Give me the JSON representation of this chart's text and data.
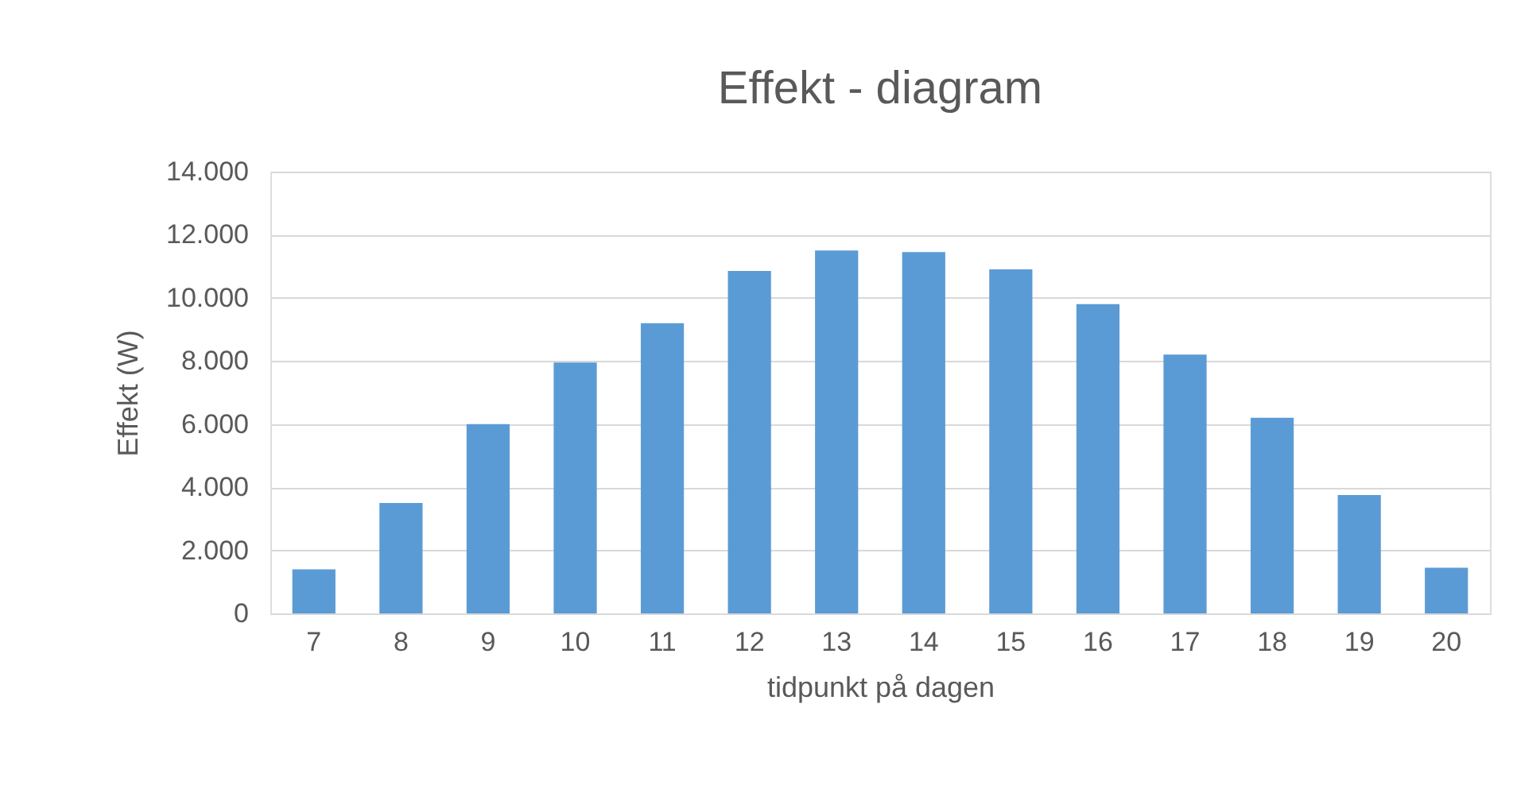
{
  "chart_data": {
    "type": "bar",
    "title": "Effekt - diagram",
    "xlabel": "tidpunkt på dagen",
    "ylabel": "Effekt (W)",
    "categories": [
      "7",
      "8",
      "9",
      "10",
      "11",
      "12",
      "13",
      "14",
      "15",
      "16",
      "17",
      "18",
      "19",
      "20"
    ],
    "values": [
      1400,
      3500,
      6000,
      7950,
      9200,
      10850,
      11500,
      11450,
      10900,
      9800,
      8200,
      6200,
      3750,
      1450
    ],
    "color": "#5b9bd5",
    "ylim": [
      0,
      14000
    ],
    "yticks": [
      0,
      {
        "value": 2000,
        "label": "2.000"
      },
      {
        "value": 4000,
        "label": "4.000"
      },
      {
        "value": 6000,
        "label": "6.000"
      },
      {
        "value": 8000,
        "label": "8.000"
      },
      {
        "value": 10000,
        "label": "10.000"
      },
      {
        "value": 12000,
        "label": "12.000"
      },
      {
        "value": 14000,
        "label": "14.000"
      }
    ],
    "grid": "y"
  }
}
